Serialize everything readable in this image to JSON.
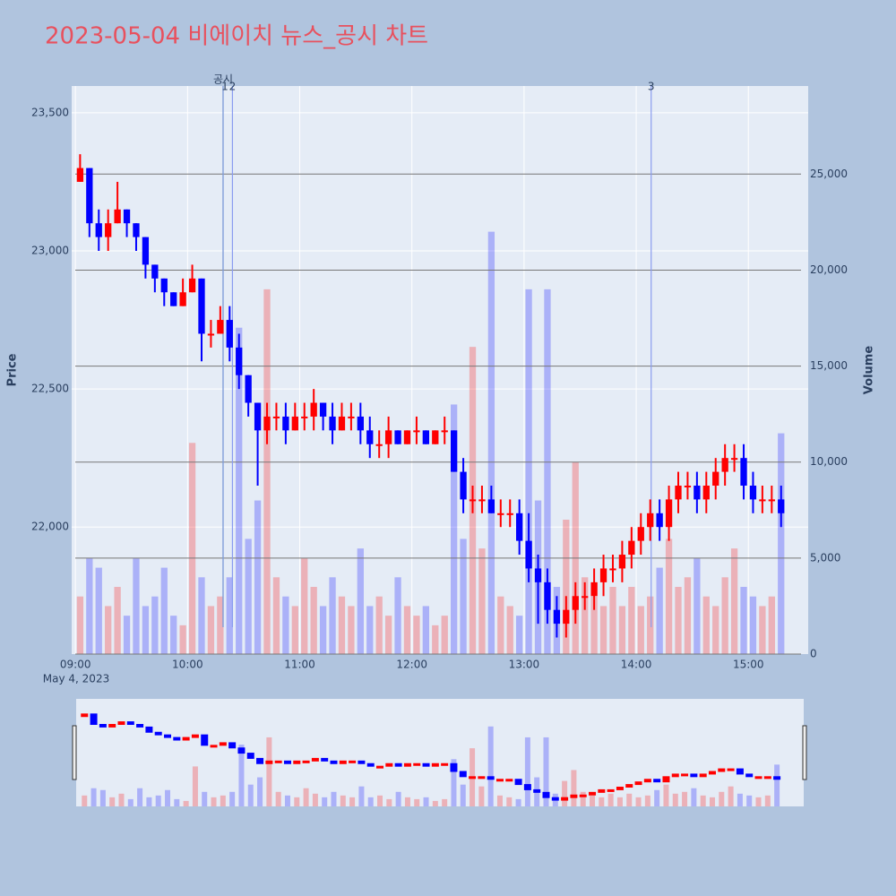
{
  "chart_data": {
    "type": "candlestick",
    "title": "2023-05-04 비에이치 뉴스_공시 차트",
    "y_label": "Price",
    "y2_label": "Volume",
    "x": [
      "09:00",
      "09:05",
      "09:10",
      "09:15",
      "09:20",
      "09:25",
      "09:30",
      "09:35",
      "09:40",
      "09:45",
      "09:50",
      "09:55",
      "10:00",
      "10:05",
      "10:10",
      "10:15",
      "10:20",
      "10:25",
      "10:30",
      "10:35",
      "10:40",
      "10:45",
      "10:50",
      "10:55",
      "11:00",
      "11:05",
      "11:10",
      "11:15",
      "11:20",
      "11:25",
      "11:30",
      "11:35",
      "11:40",
      "11:45",
      "11:50",
      "11:55",
      "12:00",
      "12:05",
      "12:10",
      "12:15",
      "12:20",
      "12:25",
      "12:30",
      "12:35",
      "12:40",
      "12:45",
      "12:50",
      "12:55",
      "13:00",
      "13:05",
      "13:10",
      "13:15",
      "13:20",
      "13:25",
      "13:30",
      "13:35",
      "13:40",
      "13:45",
      "13:50",
      "13:55",
      "14:00",
      "14:05",
      "14:10",
      "14:15",
      "14:20",
      "14:25",
      "14:30",
      "14:35",
      "14:40",
      "14:45",
      "14:50",
      "14:55",
      "15:00",
      "15:05",
      "15:10",
      "15:15"
    ],
    "open": [
      23250,
      23300,
      23100,
      23050,
      23100,
      23150,
      23100,
      23050,
      22950,
      22900,
      22850,
      22800,
      22850,
      22900,
      22700,
      22700,
      22750,
      22650,
      22550,
      22450,
      22350,
      22400,
      22400,
      22350,
      22400,
      22400,
      22450,
      22400,
      22350,
      22400,
      22400,
      22350,
      22300,
      22300,
      22350,
      22300,
      22350,
      22350,
      22300,
      22350,
      22350,
      22200,
      22100,
      22100,
      22100,
      22050,
      22050,
      22050,
      21950,
      21850,
      21800,
      21700,
      21650,
      21700,
      21750,
      21750,
      21800,
      21850,
      21850,
      21900,
      21950,
      22000,
      22050,
      22000,
      22100,
      22150,
      22150,
      22100,
      22150,
      22200,
      22250,
      22250,
      22150,
      22100,
      22100,
      22100
    ],
    "high": [
      23350,
      23300,
      23150,
      23150,
      23250,
      23150,
      23100,
      23050,
      22950,
      22900,
      22850,
      22900,
      22950,
      22900,
      22750,
      22800,
      22800,
      22700,
      22550,
      22450,
      22450,
      22450,
      22450,
      22450,
      22450,
      22500,
      22450,
      22450,
      22450,
      22450,
      22450,
      22400,
      22350,
      22400,
      22350,
      22350,
      22400,
      22350,
      22350,
      22400,
      22350,
      22250,
      22150,
      22150,
      22150,
      22100,
      22100,
      22100,
      22050,
      21900,
      21850,
      21750,
      21750,
      21800,
      21800,
      21850,
      21900,
      21900,
      21950,
      22000,
      22050,
      22100,
      22100,
      22150,
      22200,
      22200,
      22200,
      22200,
      22250,
      22300,
      22300,
      22300,
      22200,
      22150,
      22150,
      22150
    ],
    "low": [
      23250,
      23050,
      23000,
      23000,
      23100,
      23050,
      23000,
      22900,
      22850,
      22800,
      22800,
      22800,
      22850,
      22600,
      22650,
      22700,
      22600,
      22500,
      22400,
      22150,
      22300,
      22350,
      22300,
      22350,
      22350,
      22350,
      22350,
      22300,
      22350,
      22350,
      22300,
      22250,
      22250,
      22250,
      22300,
      22300,
      22300,
      22300,
      22300,
      22300,
      22200,
      22050,
      22050,
      22050,
      22050,
      22000,
      22000,
      21900,
      21800,
      21650,
      21650,
      21600,
      21600,
      21650,
      21700,
      21700,
      21750,
      21800,
      21800,
      21850,
      21900,
      21950,
      21950,
      21950,
      22050,
      22100,
      22050,
      22050,
      22100,
      22150,
      22200,
      22100,
      22050,
      22050,
      22050,
      22000
    ],
    "close": [
      23300,
      23100,
      23050,
      23100,
      23150,
      23100,
      23050,
      22950,
      22900,
      22850,
      22800,
      22850,
      22900,
      22700,
      22700,
      22750,
      22650,
      22550,
      22450,
      22350,
      22400,
      22400,
      22350,
      22400,
      22400,
      22450,
      22400,
      22350,
      22400,
      22400,
      22350,
      22300,
      22300,
      22350,
      22300,
      22350,
      22350,
      22300,
      22350,
      22350,
      22200,
      22100,
      22100,
      22100,
      22050,
      22050,
      22050,
      21950,
      21850,
      21800,
      21700,
      21650,
      21700,
      21750,
      21750,
      21800,
      21850,
      21850,
      21900,
      21950,
      22000,
      22050,
      22000,
      22100,
      22150,
      22150,
      22100,
      22150,
      22200,
      22250,
      22250,
      22150,
      22100,
      22100,
      22100,
      22050
    ],
    "volume": [
      3000,
      5000,
      4500,
      2500,
      3500,
      2000,
      5000,
      2500,
      3000,
      4500,
      2000,
      1500,
      11000,
      4000,
      2500,
      3000,
      4000,
      17000,
      6000,
      8000,
      19000,
      4000,
      3000,
      2500,
      5000,
      3500,
      2500,
      4000,
      3000,
      2500,
      5500,
      2500,
      3000,
      2000,
      4000,
      2500,
      2000,
      2500,
      1500,
      2000,
      13000,
      6000,
      16000,
      5500,
      22000,
      3000,
      2500,
      2000,
      19000,
      8000,
      19000,
      3500,
      7000,
      10000,
      4000,
      3000,
      2500,
      3500,
      2500,
      3500,
      2500,
      3000,
      4500,
      6000,
      3500,
      4000,
      5000,
      3000,
      2500,
      4000,
      5500,
      3500,
      3000,
      2500,
      3000,
      11500
    ],
    "increasing_color": "#ff0000",
    "decreasing_color": "#0000ff",
    "xlim": [
      "08:58",
      "15:32"
    ],
    "xticks": [
      "09:00",
      "10:00",
      "11:00",
      "12:00",
      "13:00",
      "14:00",
      "15:00"
    ],
    "x_date_label": "May 4, 2023",
    "ylim": [
      21540,
      23597
    ],
    "yticks": [
      {
        "value": 22000,
        "label": "22,000"
      },
      {
        "value": 22500,
        "label": "22,500"
      },
      {
        "value": 23000,
        "label": "23,000"
      },
      {
        "value": 23500,
        "label": "23,500"
      }
    ],
    "y2lim": [
      0,
      29588
    ],
    "y2ticks": [
      0,
      {
        "value": 5000,
        "label": "5,000"
      },
      {
        "value": 10000,
        "label": "10,000"
      },
      {
        "value": 15000,
        "label": "15,000"
      },
      {
        "value": 20000,
        "label": "20,000"
      },
      {
        "value": 25000,
        "label": "25,000"
      }
    ],
    "annotations": [
      {
        "x": "10:19",
        "text": "공시",
        "color": "#2ca02c"
      },
      {
        "x": "10:19",
        "text": "1",
        "color": "#8a9cf0"
      },
      {
        "x": "10:24",
        "text": "2",
        "color": "#8a9cf0"
      },
      {
        "x": "14:08",
        "text": "3",
        "color": "#8a9cf0"
      }
    ]
  }
}
